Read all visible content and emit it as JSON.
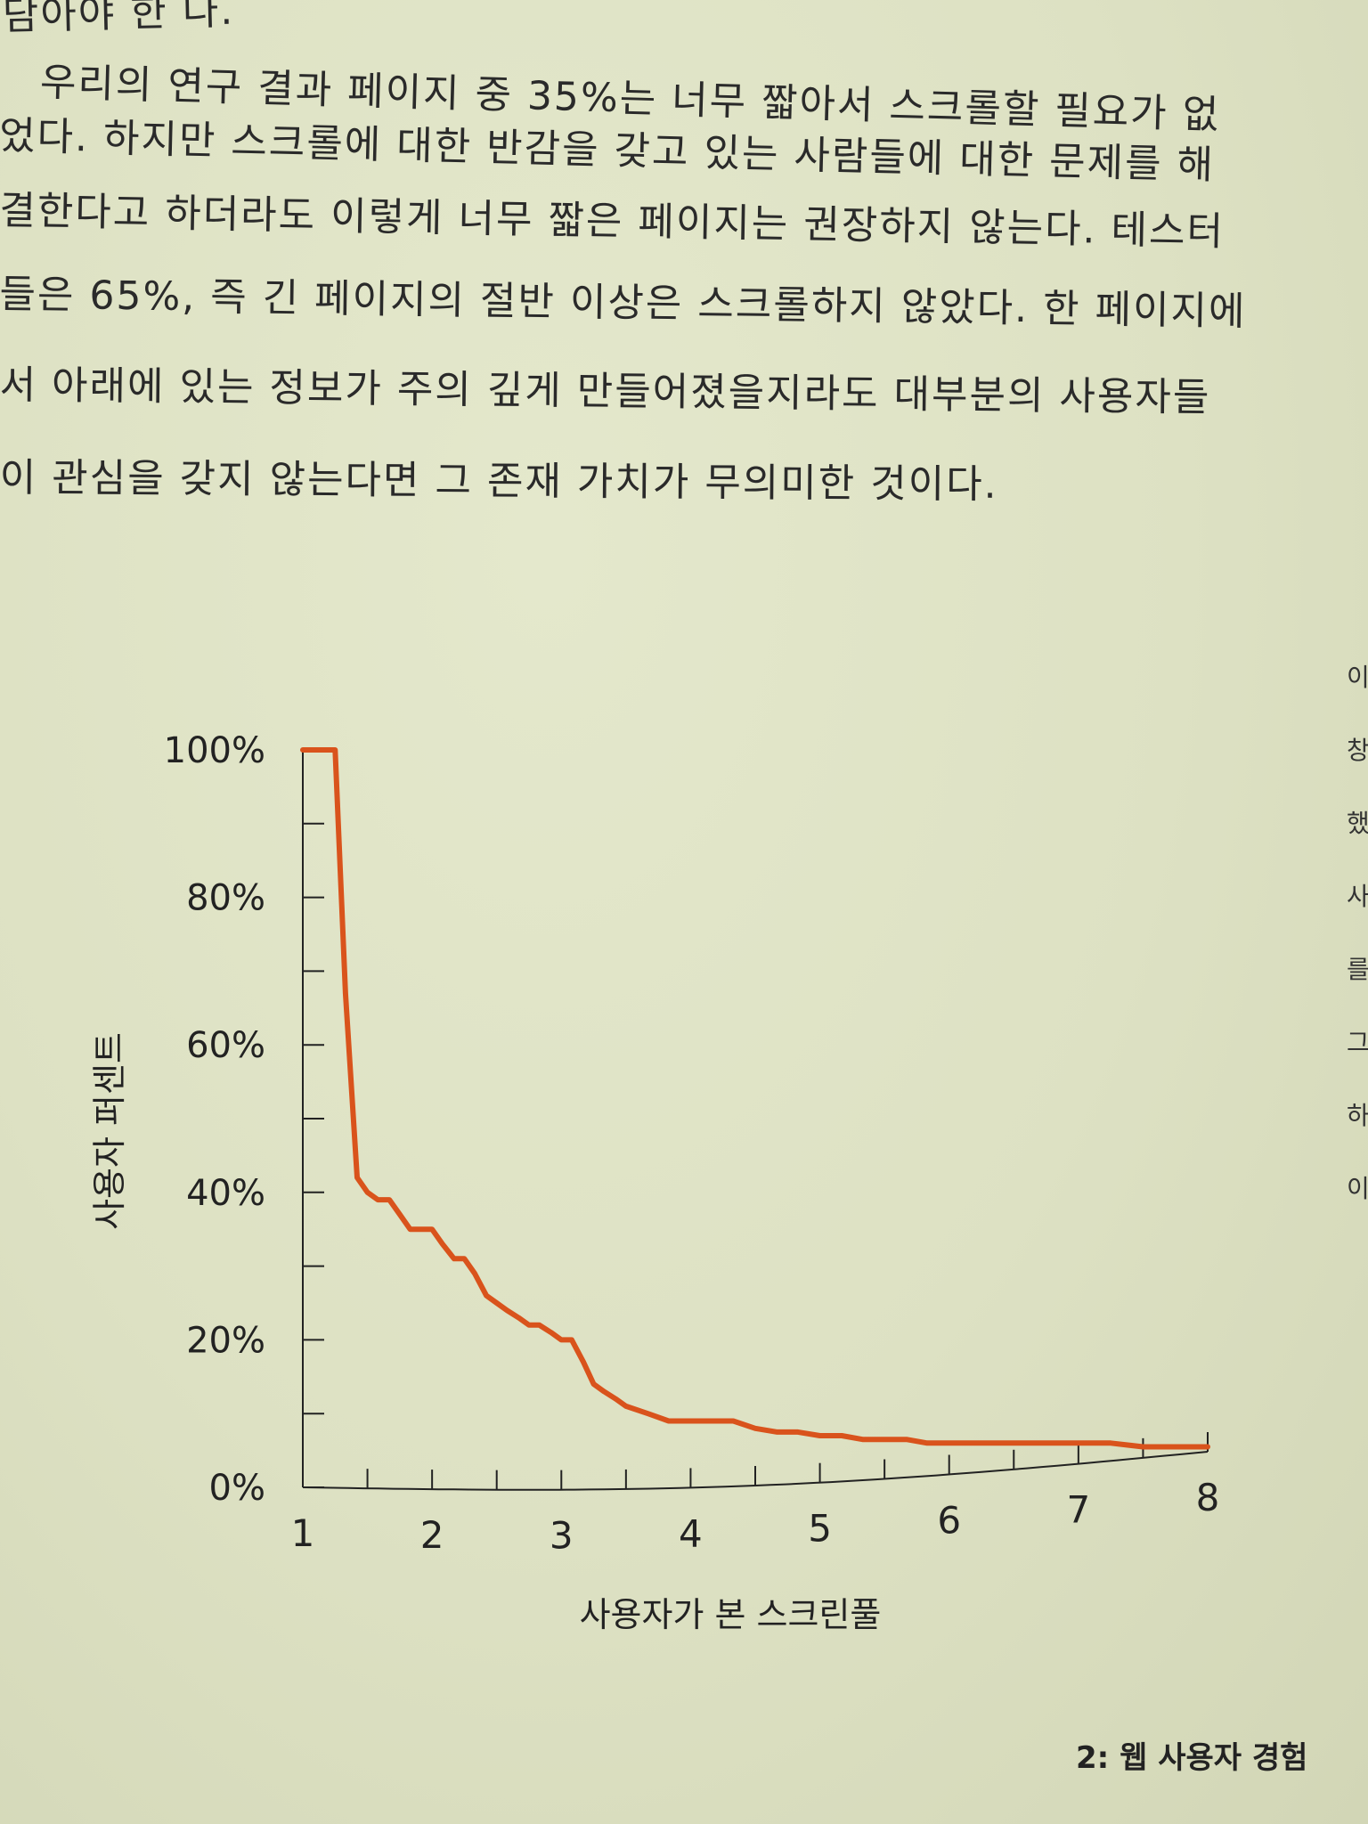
{
  "body_text": {
    "lines": [
      "담아야 한 다.",
      "우리의 연구 결과 페이지 중 35%는 너무 짧아서 스크롤할 필요가 없",
      "었다. 하지만 스크롤에 대한 반감을 갖고 있는 사람들에 대한 문제를 해",
      "결한다고 하더라도 이렇게 너무 짧은 페이지는 권장하지 않는다. 테스터",
      "들은 65%, 즉 긴 페이지의 절반 이상은 스크롤하지 않았다. 한 페이지에",
      "서 아래에 있는 정보가 주의 깊게 만들어졌을지라도 대부분의 사용자들",
      "이 관심을 갖지 않는다면 그 존재 가치가 무의미한 것이다."
    ]
  },
  "side_column": {
    "chars": [
      "이",
      "창",
      "했",
      "사",
      "를",
      "그",
      "하",
      "이"
    ]
  },
  "chart_data": {
    "type": "line",
    "xlabel": "사용자가 본 스크린풀",
    "ylabel": "사용자 퍼센트",
    "x_tick_labels": [
      "1",
      "2",
      "3",
      "4",
      "5",
      "6",
      "7",
      "8"
    ],
    "y_tick_labels": [
      "0%",
      "20%",
      "40%",
      "60%",
      "80%",
      "100%"
    ],
    "xlim": [
      1,
      8
    ],
    "ylim": [
      0,
      100
    ],
    "color": "#d9531c",
    "x": [
      1,
      1.25,
      1.33,
      1.42,
      1.5,
      1.58,
      1.67,
      1.75,
      1.83,
      2.0,
      2.08,
      2.17,
      2.25,
      2.33,
      2.42,
      2.5,
      2.58,
      2.67,
      2.75,
      2.83,
      2.92,
      3.0,
      3.08,
      3.17,
      3.25,
      3.33,
      3.42,
      3.5,
      3.67,
      3.83,
      4.0,
      4.17,
      4.33,
      4.5,
      4.67,
      4.83,
      5.0,
      5.17,
      5.33,
      5.5,
      5.67,
      5.83,
      6.0,
      6.25,
      6.5,
      6.67,
      6.83,
      7.0,
      7.25,
      7.5,
      7.75,
      8.0
    ],
    "y": [
      100,
      100,
      67,
      42,
      40,
      39,
      39,
      37,
      35,
      35,
      33,
      31,
      31,
      29,
      26,
      25,
      24,
      23,
      22,
      22,
      21,
      20,
      20,
      17,
      14,
      13,
      12,
      11,
      10,
      9,
      9,
      9,
      9,
      8,
      7.5,
      7.5,
      7,
      7,
      6.5,
      6.5,
      6.5,
      6,
      6,
      6,
      6,
      6,
      6,
      6,
      6,
      5.5,
      5.5,
      5.5
    ]
  },
  "footer": {
    "label": "2: 웹 사용자 경험"
  }
}
